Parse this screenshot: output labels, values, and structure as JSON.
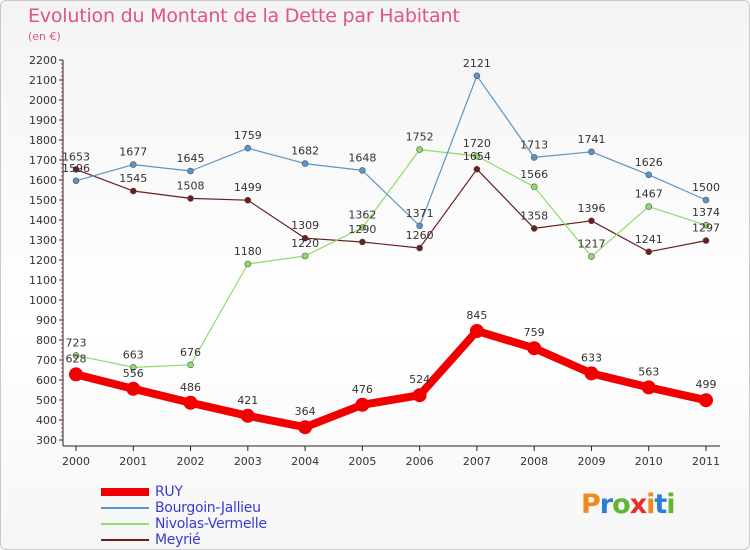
{
  "title": "Evolution du Montant de la Dette par Habitant",
  "subtitle": "(en €)",
  "logo": {
    "letters": [
      "P",
      "r",
      "o",
      "x",
      "i",
      "t",
      "i"
    ],
    "colors": [
      "#f08a1c",
      "#2a7fd4",
      "#5fb82e",
      "#e8302a",
      "#f08a1c",
      "#2a7fd4",
      "#5fb82e"
    ]
  },
  "chart_data": {
    "type": "line",
    "title": "Evolution du Montant de la Dette par Habitant",
    "subtitle": "(en €)",
    "x": [
      "2000",
      "2001",
      "2002",
      "2003",
      "2004",
      "2005",
      "2006",
      "2007",
      "2008",
      "2009",
      "2010",
      "2011"
    ],
    "yticks": [
      "300",
      "400",
      "500",
      "600",
      "700",
      "800",
      "900",
      "1000",
      "1100",
      "1200",
      "1300",
      "1400",
      "1500",
      "1600",
      "1700",
      "1800",
      "1900",
      "2000",
      "2100",
      "2200"
    ],
    "ylim": [
      300,
      2200
    ],
    "grid": false,
    "legend_position": "bottom-left",
    "series": [
      {
        "name": "Meyrié",
        "color": "#6b1e1e",
        "width": 1.2,
        "values": [
          1653,
          1545,
          1508,
          1499,
          1309,
          1290,
          1260,
          1654,
          1358,
          1396,
          1241,
          1297
        ],
        "labels": [
          "1653",
          "1545",
          "1508",
          "1499",
          "1309",
          "1290",
          "1260",
          "1654",
          "1358",
          "1396",
          "1241",
          "1297"
        ]
      },
      {
        "name": "Nivolas-Vermelle",
        "color": "#8fdc6a",
        "width": 1.2,
        "values": [
          723,
          663,
          676,
          1180,
          1220,
          1362,
          1752,
          1720,
          1566,
          1217,
          1467,
          1374
        ],
        "labels": [
          "723",
          "663",
          "676",
          "1180",
          "1220",
          "1362",
          "1752",
          "1720",
          "1566",
          "1217",
          "1467",
          "1374"
        ]
      },
      {
        "name": "Bourgoin-Jallieu",
        "color": "#5b95c8",
        "width": 1.2,
        "values": [
          1596,
          1677,
          1645,
          1759,
          1682,
          1648,
          1371,
          2121,
          1713,
          1741,
          1626,
          1500
        ],
        "labels": [
          "1596",
          "1677",
          "1645",
          "1759",
          "1682",
          "1648",
          "1371",
          "2121",
          "1713",
          "1741",
          "1626",
          "1500"
        ]
      },
      {
        "name": "RUY",
        "color": "#f00000",
        "width": 8,
        "values": [
          628,
          556,
          486,
          421,
          364,
          476,
          524,
          845,
          759,
          633,
          563,
          499
        ],
        "labels": [
          "628",
          "556",
          "486",
          "421",
          "364",
          "476",
          "524",
          "845",
          "759",
          "633",
          "563",
          "499"
        ]
      }
    ],
    "legend_order": [
      "RUY",
      "Bourgoin-Jallieu",
      "Nivolas-Vermelle",
      "Meyrié"
    ]
  }
}
